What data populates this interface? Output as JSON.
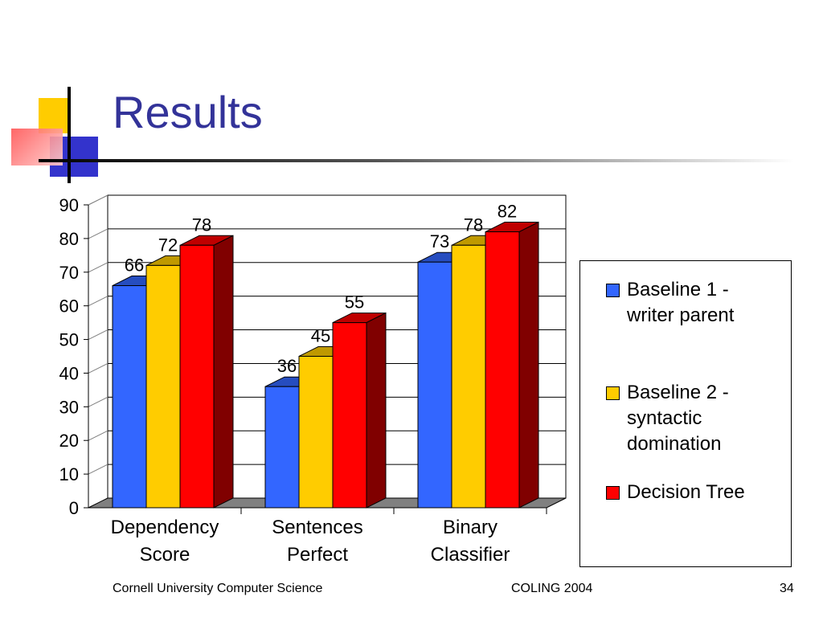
{
  "slide": {
    "title": "Results",
    "footer_left": "Cornell University Computer Science",
    "footer_center": "COLING 2004",
    "page_number": "34"
  },
  "chart_data": {
    "type": "bar",
    "categories": [
      "Dependency Score",
      "Sentences Perfect",
      "Binary Classifier"
    ],
    "category_lines": [
      [
        "Dependency",
        "Score"
      ],
      [
        "Sentences",
        "Perfect"
      ],
      [
        "Binary",
        "Classifier"
      ]
    ],
    "series": [
      {
        "name": "Baseline 1 - writer parent",
        "values": [
          66,
          36,
          73
        ],
        "color": "#3366FF",
        "label_lines": [
          "Baseline 1 -",
          "writer parent"
        ]
      },
      {
        "name": "Baseline 2 - syntactic domination",
        "values": [
          72,
          45,
          78
        ],
        "color": "#FFCC00",
        "label_lines": [
          "Baseline 2 -",
          "syntactic",
          "domination"
        ]
      },
      {
        "name": "Decision Tree",
        "values": [
          78,
          55,
          82
        ],
        "color": "#FF0000",
        "label_lines": [
          "Decision Tree"
        ]
      }
    ],
    "ylim": [
      0,
      90
    ],
    "yticks": [
      0,
      10,
      20,
      30,
      40,
      50,
      60,
      70,
      80,
      90
    ],
    "grid": true,
    "legend": "right",
    "xlabel": "",
    "ylabel": ""
  }
}
